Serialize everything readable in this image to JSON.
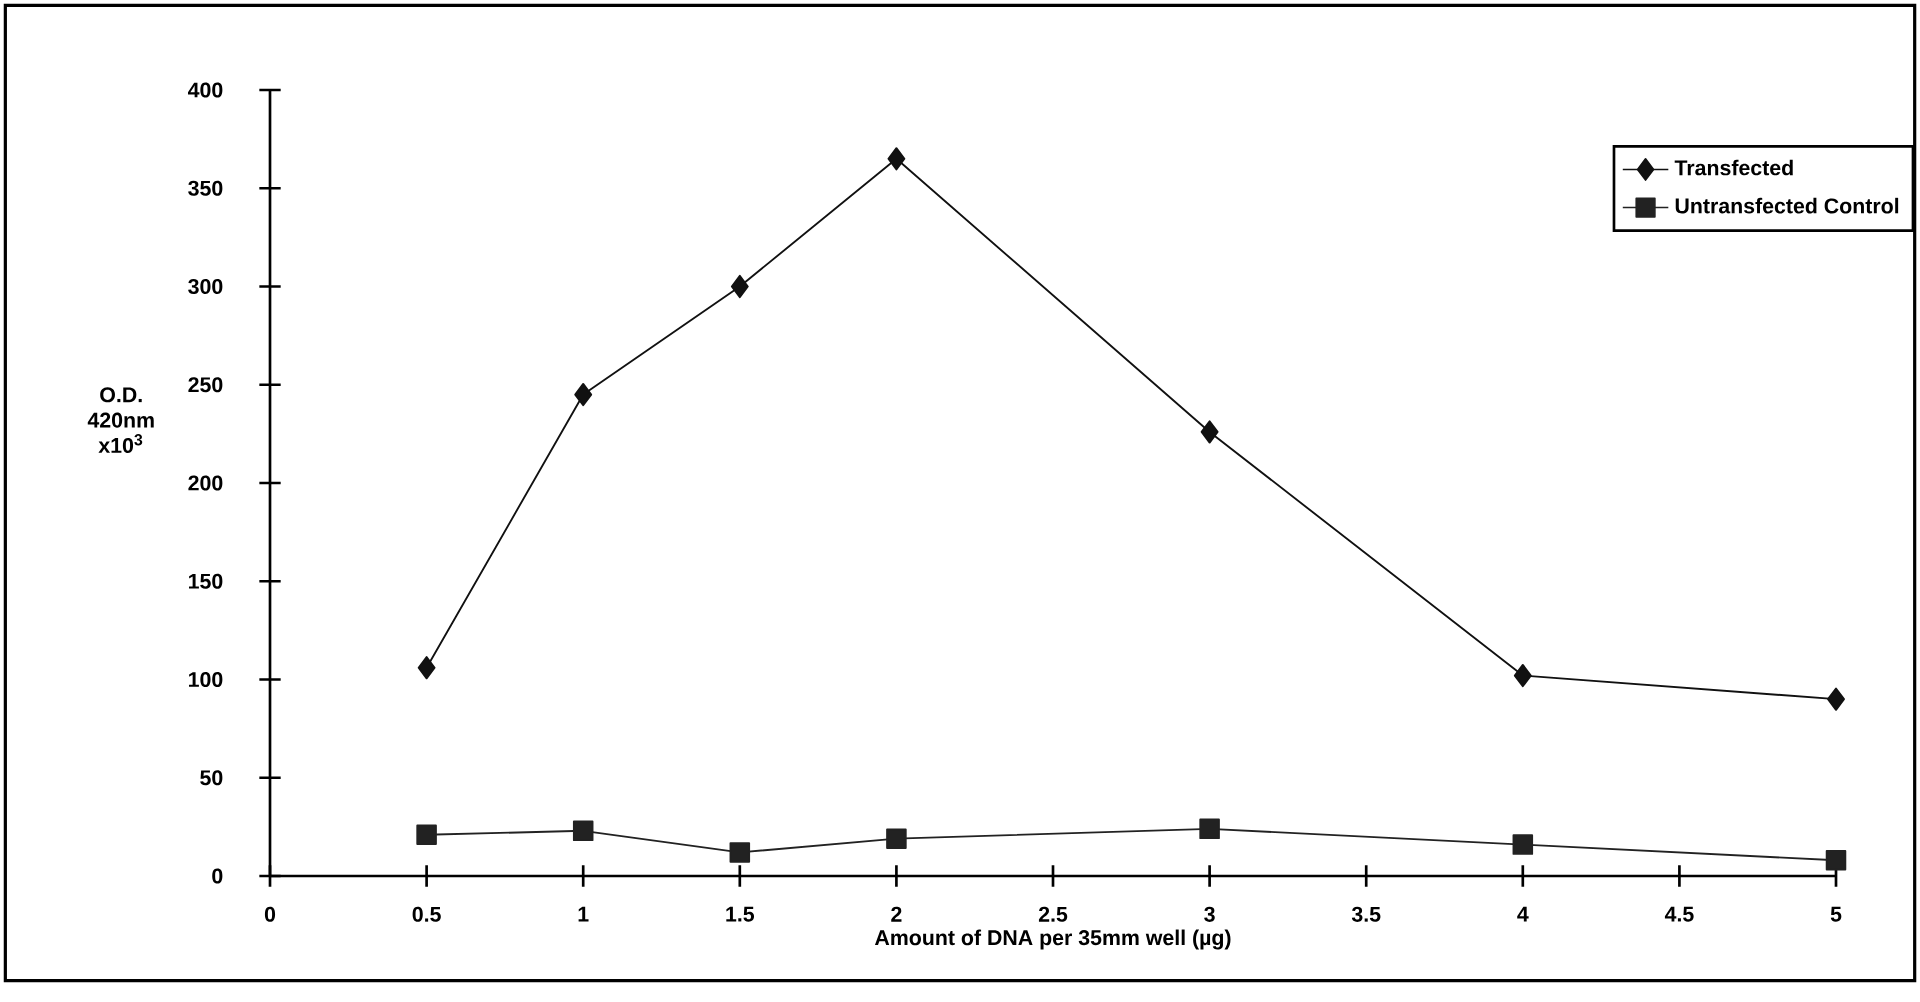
{
  "chart_data": {
    "type": "line",
    "xlabel": "Amount of DNA per 35mm well (µg)",
    "ylabel": "O.D. 420nm x10$^{3}$",
    "x": [
      0.5,
      1,
      1.5,
      2,
      3,
      4,
      5
    ],
    "series": [
      {
        "name": "Transfected",
        "color": "#111111",
        "marker": "diamond",
        "values": [
          106,
          245,
          300,
          365,
          226,
          102,
          90
        ]
      },
      {
        "name": "Untransfected Control",
        "color": "#222222",
        "marker": "square",
        "values": [
          21,
          23,
          12,
          19,
          24,
          16,
          8
        ]
      }
    ],
    "xlim": [
      0,
      5
    ],
    "ylim": [
      0,
      400
    ],
    "xticks": [
      0,
      0.5,
      1,
      1.5,
      2,
      2.5,
      3,
      3.5,
      4,
      4.5,
      5
    ],
    "yticks": [
      0,
      50,
      100,
      150,
      200,
      250,
      300,
      350,
      400
    ],
    "grid": false,
    "legend": "top right",
    "line_style": "solid"
  }
}
